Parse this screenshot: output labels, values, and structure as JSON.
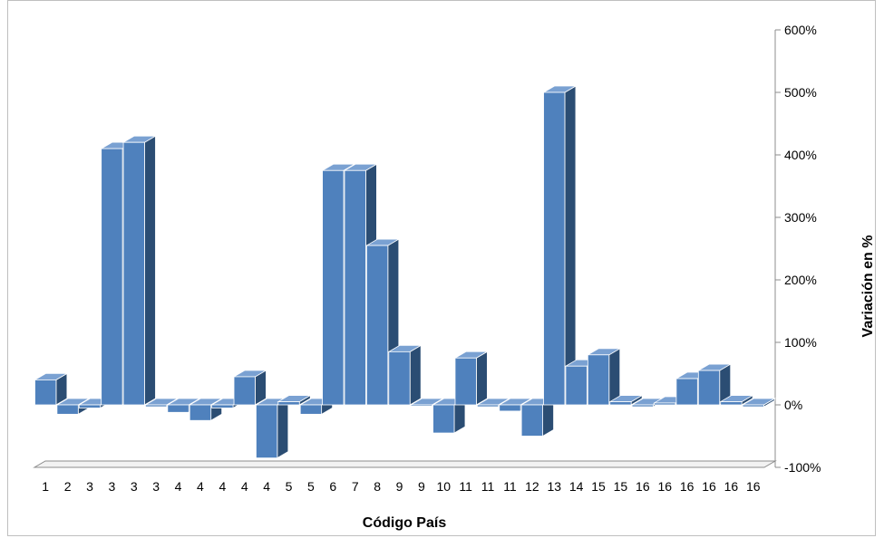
{
  "chart_data": {
    "type": "bar",
    "title": "",
    "xlabel": "Código País",
    "ylabel": "Variación en %",
    "categories": [
      "1",
      "2",
      "3",
      "3",
      "3",
      "3",
      "4",
      "4",
      "4",
      "4",
      "4",
      "5",
      "5",
      "6",
      "7",
      "8",
      "9",
      "9",
      "10",
      "11",
      "11",
      "11",
      "12",
      "13",
      "14",
      "15",
      "15",
      "16",
      "16",
      "16",
      "16",
      "16",
      "16"
    ],
    "series": [
      {
        "values": [
          40,
          -15,
          -5,
          410,
          420,
          -3,
          -12,
          -25,
          -5,
          45,
          -85,
          5,
          -15,
          375,
          375,
          255,
          85,
          -2,
          -45,
          75,
          -3,
          -10,
          -50,
          500,
          62,
          80,
          5,
          -3,
          3,
          42,
          55,
          5,
          -3
        ]
      }
    ],
    "yticks": [
      "600%",
      "500%",
      "400%",
      "300%",
      "200%",
      "100%",
      "0%",
      "-100%"
    ],
    "ytick_values": [
      600,
      500,
      400,
      300,
      200,
      100,
      0,
      -100
    ],
    "ylim": [
      -100,
      600
    ],
    "y_axis_position": "right",
    "grid": false,
    "legend": "none",
    "style": "3d-column",
    "colors": {
      "bar_front": "#4f81bd",
      "bar_side": "#2b4d73",
      "bar_top": "#7aa1d2",
      "axis": "#8c8c8c",
      "edge": "#ffffff"
    }
  }
}
